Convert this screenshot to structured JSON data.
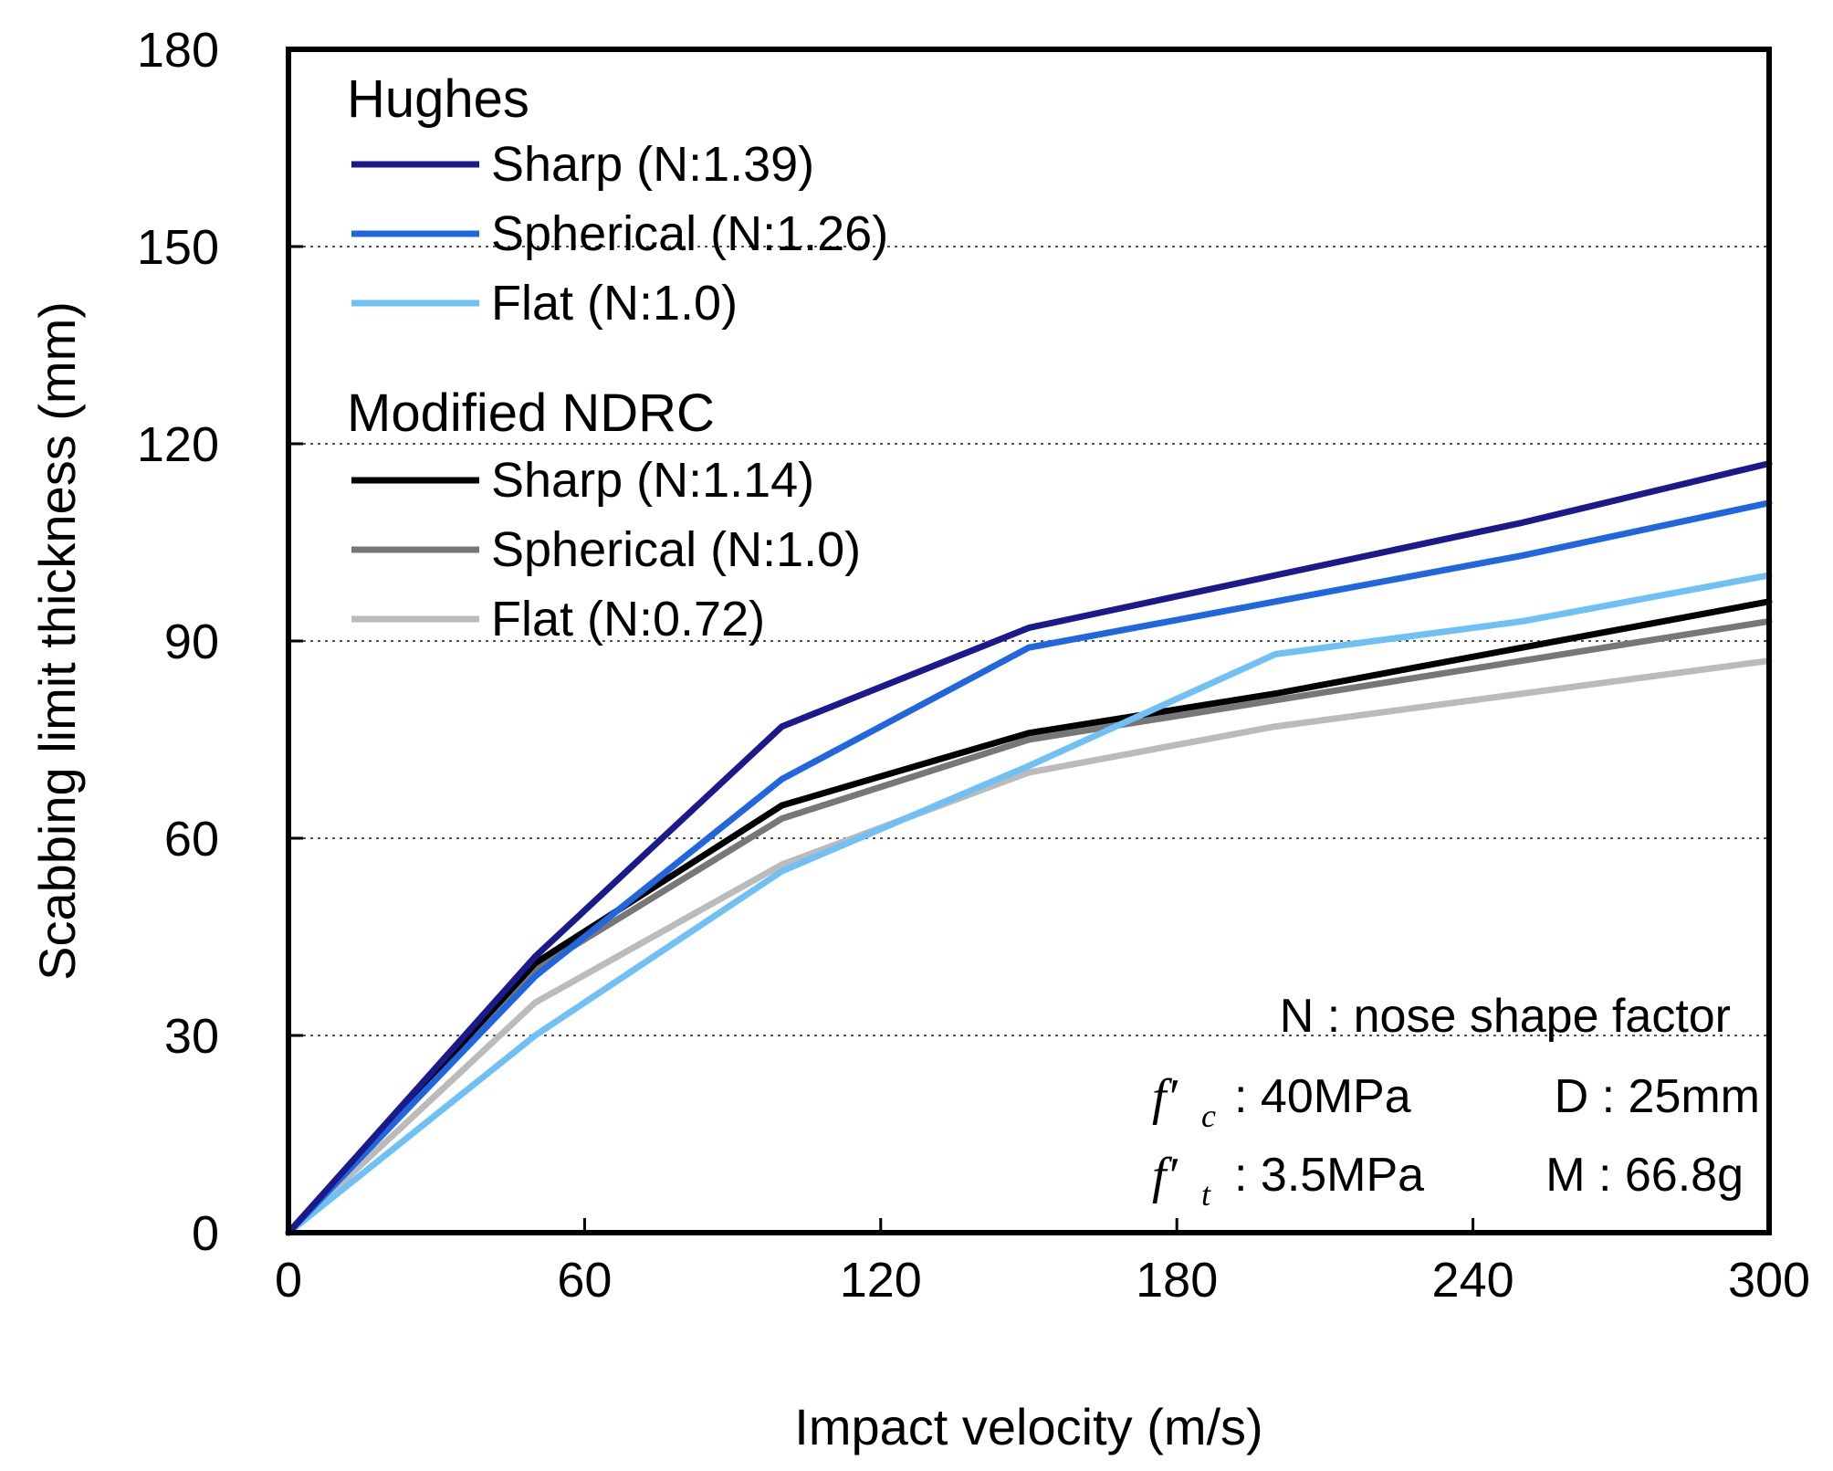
{
  "chart_data": {
    "type": "line",
    "xlabel": "Impact velocity (m/s)",
    "ylabel": "Scabbing limit thickness (mm)",
    "xlim": [
      0,
      300
    ],
    "ylim": [
      0,
      180
    ],
    "xticks": [
      "0",
      "60",
      "120",
      "180",
      "240",
      "300"
    ],
    "yticks": [
      "0",
      "30",
      "60",
      "90",
      "120",
      "150",
      "180"
    ],
    "grid": "horizontal dotted",
    "x": [
      0,
      50,
      100,
      150,
      200,
      250,
      300
    ],
    "groups": [
      {
        "name": "Hughes",
        "series": [
          {
            "name": "Sharp (N:1.39)",
            "color": "#1a1a8c",
            "values": [
              0,
              42,
              77,
              92,
              100,
              108,
              117
            ]
          },
          {
            "name": "Spherical (N:1.26)",
            "color": "#1f66e0",
            "values": [
              0,
              39,
              69,
              89,
              96,
              103,
              111
            ]
          },
          {
            "name": "Flat (N:1.0)",
            "color": "#6ec0f5",
            "values": [
              0,
              30,
              55,
              71,
              88,
              93,
              100
            ]
          }
        ]
      },
      {
        "name": "Modified NDRC",
        "series": [
          {
            "name": "Sharp (N:1.14)",
            "color": "#000000",
            "values": [
              0,
              41,
              65,
              76,
              82,
              89,
              96
            ]
          },
          {
            "name": "Spherical (N:1.0)",
            "color": "#777777",
            "values": [
              0,
              40,
              63,
              75,
              81,
              87,
              93
            ]
          },
          {
            "name": "Flat (N:0.72)",
            "color": "#bbbbbb",
            "values": [
              0,
              35,
              56,
              70,
              77,
              82,
              87
            ]
          }
        ]
      }
    ],
    "legend_position": "top-left",
    "annotations": {
      "n_line": "N : nose shape factor",
      "fc_symbol": "f′",
      "fc_sub": "c",
      "fc_value": ": 40MPa",
      "d_value": "D : 25mm",
      "ft_symbol": "f′",
      "ft_sub": "t",
      "ft_value": ": 3.5MPa",
      "m_value": "M : 66.8g"
    }
  }
}
